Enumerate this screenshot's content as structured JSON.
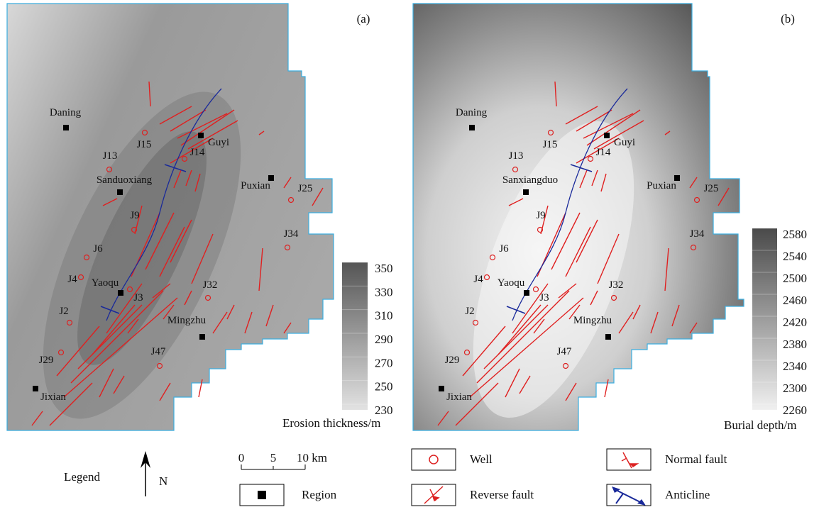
{
  "panels": [
    {
      "label": "(a)",
      "places": [
        "Daning",
        "Guyi",
        "Sanduoxiang",
        "Puxian",
        "Yaoqu",
        "Mingzhu",
        "Jixian"
      ],
      "wells": [
        "J15",
        "J14",
        "J13",
        "J25",
        "J9",
        "J34",
        "J6",
        "J4",
        "J3",
        "J32",
        "J2",
        "J29",
        "J47"
      ],
      "colorbar": {
        "title": "Erosion thickness/m",
        "ticks": [
          350,
          330,
          310,
          290,
          270,
          250,
          230
        ]
      }
    },
    {
      "label": "(b)",
      "places": [
        "Daning",
        "Guyi",
        "Sanxiangduo",
        "Puxian",
        "Yaoqu",
        "Mingzhu",
        "Jixian"
      ],
      "wells": [
        "J15",
        "J14",
        "J13",
        "J25",
        "J9",
        "J34",
        "J6",
        "J4",
        "J3",
        "J32",
        "J2",
        "J29",
        "J47"
      ],
      "colorbar": {
        "title": "Burial depth/m",
        "ticks": [
          2580,
          2540,
          2500,
          2460,
          2420,
          2380,
          2340,
          2300,
          2260
        ]
      }
    }
  ],
  "legend": {
    "title": "Legend",
    "north": "N",
    "scale": [
      "0",
      "5",
      "10 km"
    ],
    "items": [
      "Well",
      "Normal fault",
      "Region",
      "Reverse fault",
      "Anticline"
    ]
  }
}
